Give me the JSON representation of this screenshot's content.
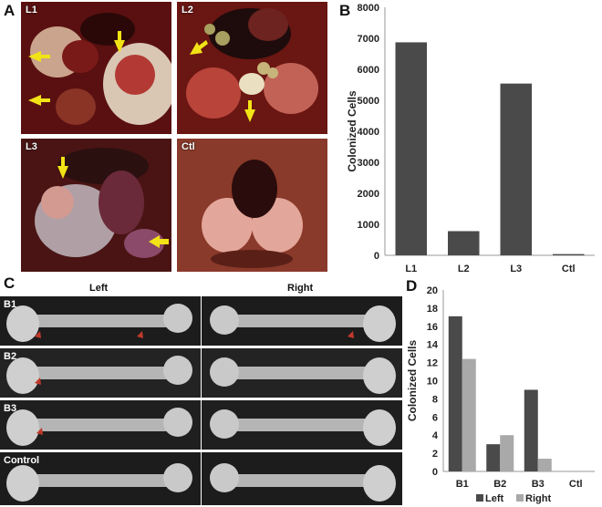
{
  "panels": {
    "a": {
      "letter": "A",
      "photos": [
        {
          "label": "L1"
        },
        {
          "label": "L2"
        },
        {
          "label": "L3"
        },
        {
          "label": "Ctl"
        }
      ]
    },
    "b": {
      "letter": "B"
    },
    "c": {
      "letter": "C",
      "left_header": "Left",
      "right_header": "Right",
      "rows": [
        {
          "label": "B1"
        },
        {
          "label": "B2"
        },
        {
          "label": "B3"
        },
        {
          "label": "Control"
        }
      ]
    },
    "d": {
      "letter": "D"
    }
  },
  "colors": {
    "dark_bar": "#4a4a4a",
    "light_bar": "#a9a9a9",
    "arrow": "#f2e316",
    "xray_arrow": "#c0392b"
  },
  "chart_data": [
    {
      "type": "bar",
      "panel": "B",
      "categories": [
        "L1",
        "L2",
        "L3",
        "Ctl"
      ],
      "values": [
        6870,
        780,
        5540,
        40
      ],
      "ylabel": "Colonized Cells",
      "ylim": [
        0,
        8000
      ],
      "yticks": [
        0,
        1000,
        2000,
        3000,
        4000,
        5000,
        6000,
        7000,
        8000
      ],
      "grid": false
    },
    {
      "type": "bar",
      "panel": "D",
      "categories": [
        "B1",
        "B2",
        "B3",
        "Ctl"
      ],
      "series": [
        {
          "name": "Left",
          "values": [
            17.1,
            3.0,
            9.0,
            0
          ]
        },
        {
          "name": "Right",
          "values": [
            12.4,
            4.0,
            1.4,
            0
          ]
        }
      ],
      "ylabel": "Colonized Cells",
      "ylim": [
        0,
        20
      ],
      "yticks": [
        0,
        2,
        4,
        6,
        8,
        10,
        12,
        14,
        16,
        18,
        20
      ],
      "legend": "bottom",
      "grid": false
    }
  ]
}
